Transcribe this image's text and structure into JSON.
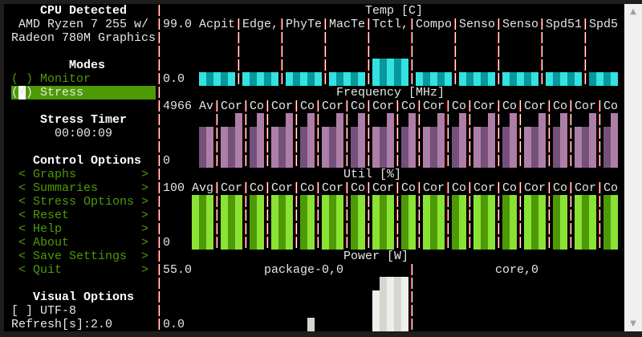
{
  "sidebar": {
    "cpu_title": "CPU Detected",
    "cpu_line1": "AMD Ryzen 7 255 w/",
    "cpu_line2": "Radeon 780M Graphics",
    "modes_title": "Modes",
    "modes": [
      {
        "mark": "( )",
        "label": "Monitor",
        "selected": false
      },
      {
        "mark": "(X)",
        "label": "Stress",
        "selected": true
      }
    ],
    "timer_title": "Stress Timer",
    "timer_value": "00:00:09",
    "control_title": "Control Options",
    "controls": [
      {
        "label": "Graphs"
      },
      {
        "label": "Summaries"
      },
      {
        "label": "Stress Options"
      },
      {
        "label": "Reset"
      },
      {
        "label": "Help"
      },
      {
        "label": "About"
      },
      {
        "label": "Save Settings"
      },
      {
        "label": "Quit"
      }
    ],
    "arrow_left": "<",
    "arrow_right": ">",
    "visual_title": "Visual Options",
    "utf8_box": "[ ]",
    "utf8_label": "UTF-8",
    "utf8_checked": false,
    "refresh_label": "Refresh[s]:2.0"
  },
  "graphs": {
    "temp": {
      "title": "Temp [C]",
      "max": "99.0",
      "min": "0.0",
      "scale_max": 99,
      "colors": {
        "light": "#34e2e2",
        "dark": "#06989a"
      },
      "sensors": [
        {
          "label": "Acpit",
          "value": 20
        },
        {
          "label": "Edge,",
          "value": 20
        },
        {
          "label": "PhyTe",
          "value": 20
        },
        {
          "label": "MacTe",
          "value": 20
        },
        {
          "label": "Tctl,",
          "value": 40
        },
        {
          "label": "Compo",
          "value": 20
        },
        {
          "label": "Senso",
          "value": 20
        },
        {
          "label": "Senso",
          "value": 20
        },
        {
          "label": "Spd51",
          "value": 20
        },
        {
          "label": "Spd5",
          "value": 20
        }
      ]
    },
    "freq": {
      "title": "Frequency [MHz]",
      "max": "4966",
      "min": "0",
      "scale_max": 4966,
      "colors": {
        "light": "#ad7fa8",
        "dark": "#75507b"
      },
      "columns": [
        {
          "label": "Av",
          "values": [
            3700,
            3700
          ]
        },
        {
          "label": "Cor",
          "values": [
            3700,
            3700,
            4966
          ]
        },
        {
          "label": "Co",
          "values": [
            3700,
            4966
          ]
        },
        {
          "label": "Cor",
          "values": [
            3700,
            3700,
            4966
          ]
        },
        {
          "label": "Co",
          "values": [
            3700,
            4966
          ]
        },
        {
          "label": "Cor",
          "values": [
            3700,
            3700,
            4966
          ]
        },
        {
          "label": "Co",
          "values": [
            3700,
            4966
          ]
        },
        {
          "label": "Cor",
          "values": [
            3700,
            3700,
            4966
          ]
        },
        {
          "label": "Co",
          "values": [
            3700,
            4966
          ]
        },
        {
          "label": "Cor",
          "values": [
            3700,
            3700,
            4966
          ]
        },
        {
          "label": "Co",
          "values": [
            3700,
            4966
          ]
        },
        {
          "label": "Cor",
          "values": [
            3700,
            3700,
            4966
          ]
        },
        {
          "label": "Co",
          "values": [
            3700,
            4966
          ]
        },
        {
          "label": "Cor",
          "values": [
            3700,
            3700,
            4966
          ]
        },
        {
          "label": "Co",
          "values": [
            3700,
            4966
          ]
        },
        {
          "label": "Cor",
          "values": [
            3700,
            3700,
            4966
          ]
        },
        {
          "label": "Co",
          "values": [
            3700,
            4966
          ]
        }
      ]
    },
    "util": {
      "title": "Util [%]",
      "max": "100",
      "min": "0",
      "scale_max": 100,
      "colors": {
        "light": "#8ae234",
        "dark": "#4e9a06"
      },
      "columns": [
        {
          "label": "Avg",
          "values": [
            100,
            100,
            100
          ]
        },
        {
          "label": "Cor",
          "values": [
            100,
            100,
            100
          ]
        },
        {
          "label": "Co",
          "values": [
            100,
            100
          ]
        },
        {
          "label": "Cor",
          "values": [
            100,
            100,
            100
          ]
        },
        {
          "label": "Co",
          "values": [
            100,
            100
          ]
        },
        {
          "label": "Cor",
          "values": [
            100,
            100,
            100
          ]
        },
        {
          "label": "Co",
          "values": [
            100,
            100
          ]
        },
        {
          "label": "Cor",
          "values": [
            100,
            100,
            100
          ]
        },
        {
          "label": "Co",
          "values": [
            100,
            100
          ]
        },
        {
          "label": "Cor",
          "values": [
            100,
            100,
            100
          ]
        },
        {
          "label": "Co",
          "values": [
            100,
            100
          ]
        },
        {
          "label": "Cor",
          "values": [
            100,
            100,
            100
          ]
        },
        {
          "label": "Co",
          "values": [
            100,
            100
          ]
        },
        {
          "label": "Cor",
          "values": [
            100,
            100,
            100
          ]
        },
        {
          "label": "Co",
          "values": [
            100,
            100
          ]
        },
        {
          "label": "Cor",
          "values": [
            100,
            100,
            100
          ]
        },
        {
          "label": "Co",
          "values": [
            100,
            100
          ]
        }
      ]
    },
    "power": {
      "title": "Power [W]",
      "max": "55.0",
      "min": "0.0",
      "scale_max": 55,
      "colors": {
        "light": "#eeeeec",
        "dark": "#d3d7cf"
      },
      "columns": [
        {
          "label": "package-0,0",
          "history": [
            0,
            0,
            0,
            0,
            0,
            0,
            0,
            0,
            0,
            0,
            0,
            0,
            0,
            0,
            0,
            0,
            0,
            0,
            0,
            0,
            14,
            0,
            0,
            0,
            0,
            0,
            0,
            0,
            0,
            41,
            55,
            55,
            55,
            55
          ]
        },
        {
          "label": "core,0",
          "history": []
        }
      ]
    }
  },
  "scrollbar": {
    "up": "▲",
    "down": "▼"
  }
}
